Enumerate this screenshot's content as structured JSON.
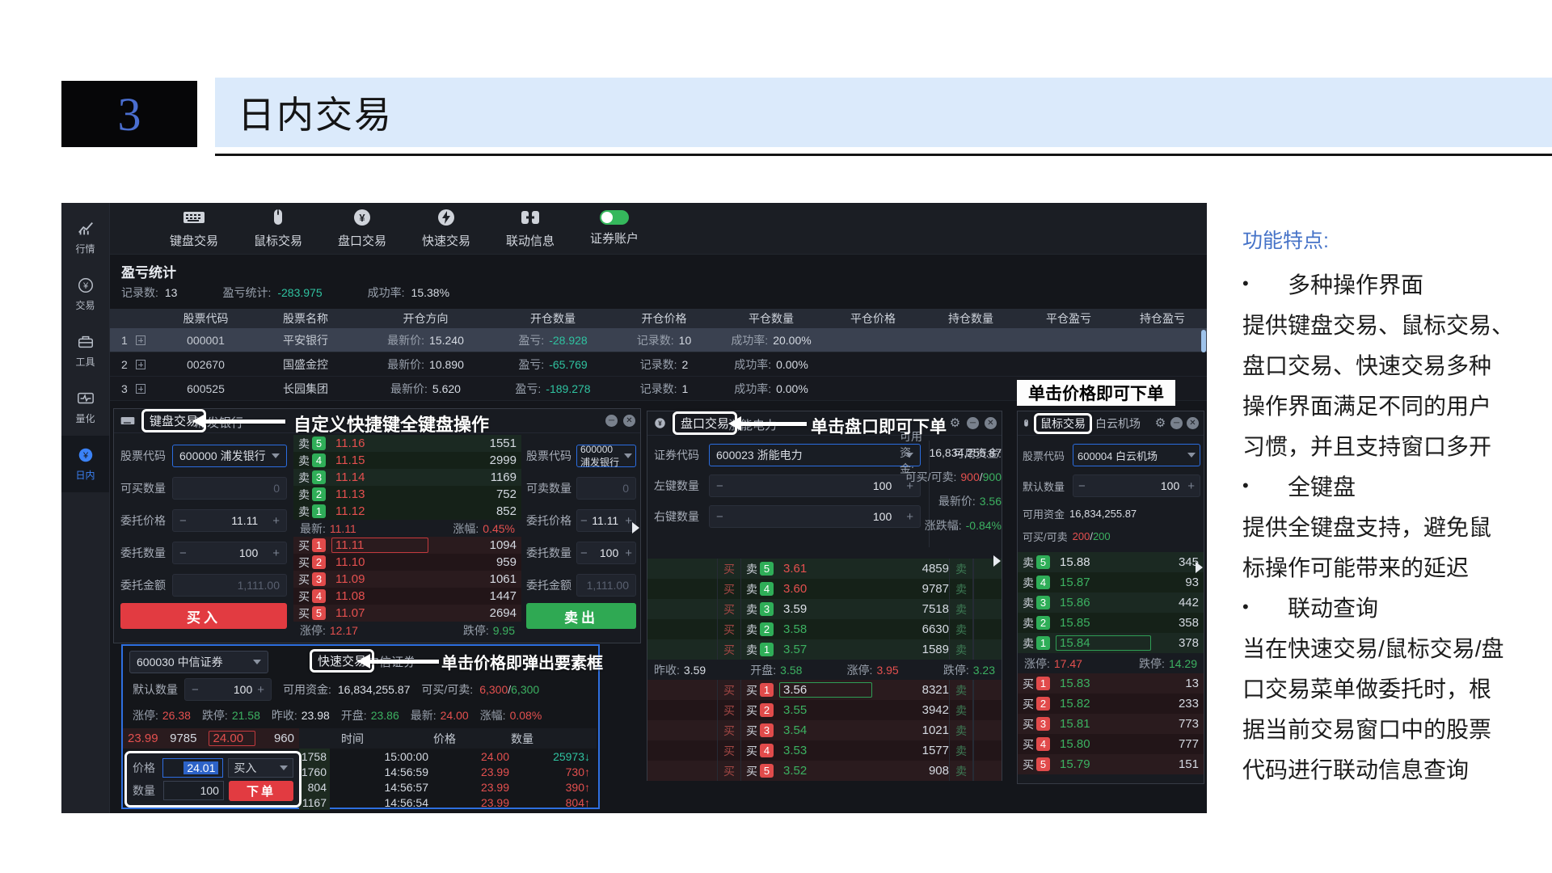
{
  "header": {
    "num": "3",
    "title": "日内交易"
  },
  "sidebar": [
    {
      "label": "行情"
    },
    {
      "label": "交易"
    },
    {
      "label": "工具"
    },
    {
      "label": "量化"
    },
    {
      "label": "日内"
    }
  ],
  "toolbar": [
    {
      "label": "键盘交易"
    },
    {
      "label": "鼠标交易"
    },
    {
      "label": "盘口交易"
    },
    {
      "label": "快速交易"
    },
    {
      "label": "联动信息"
    },
    {
      "label": "证券账户"
    }
  ],
  "pnl": {
    "title": "盈亏统计",
    "stats": [
      {
        "label": "记录数:",
        "value": "13"
      },
      {
        "label": "盈亏统计:",
        "value": "-283.975"
      },
      {
        "label": "成功率:",
        "value": "15.38%"
      }
    ],
    "columns": [
      "股票代码",
      "股票名称",
      "开仓方向",
      "开仓数量",
      "开仓价格",
      "平仓数量",
      "平仓价格",
      "持仓数量",
      "平仓盈亏",
      "持仓盈亏"
    ],
    "rows": [
      {
        "num": "1",
        "code": "000001",
        "name": "平安银行",
        "l1": "最新价:",
        "v1": "15.240",
        "l2": "盈亏:",
        "v2": "-28.928",
        "l3": "记录数:",
        "v3": "10",
        "l4": "成功率:",
        "v4": "20.00%",
        "rc": "sel"
      },
      {
        "num": "2",
        "code": "002670",
        "name": "国盛金控",
        "l1": "最新价:",
        "v1": "10.890",
        "l2": "盈亏:",
        "v2": "-65.769",
        "l3": "记录数:",
        "v3": "2",
        "l4": "成功率:",
        "v4": "0.00%",
        "rc": ""
      },
      {
        "num": "3",
        "code": "600525",
        "name": "长园集团",
        "l1": "最新价:",
        "v1": "5.620",
        "l2": "盈亏:",
        "v2": "-189.278",
        "l3": "记录数:",
        "v3": "1",
        "l4": "成功率:",
        "v4": "0.00%",
        "rc": ""
      }
    ]
  },
  "kb": {
    "title": "键盘交易",
    "stock": "浦发银行",
    "buy": {
      "code_label": "股票代码",
      "code": "600000  浦发银行",
      "qty_label": "可买数量",
      "qty": "0",
      "price_label": "委托价格",
      "price": "11.11",
      "num_label": "委托数量",
      "num": "100",
      "amt_label": "委托金额",
      "amt": "1,111.00",
      "btn": "买入"
    },
    "sell": {
      "code_label": "股票代码",
      "code": "600000  浦发银行",
      "qty_label": "可卖数量",
      "qty": "0",
      "price_label": "委托价格",
      "price": "11.11",
      "num_label": "委托数量",
      "num": "100",
      "amt_label": "委托金额",
      "amt": "1,111.00",
      "btn": "卖出"
    },
    "book": {
      "sell_rows": [
        {
          "b": "卖",
          "n": "5",
          "price": "11.16",
          "vol": "1551",
          "pc": "red",
          "rc": "s1"
        },
        {
          "b": "卖",
          "n": "4",
          "price": "11.15",
          "vol": "2999",
          "pc": "red",
          "rc": "s2"
        },
        {
          "b": "卖",
          "n": "3",
          "price": "11.14",
          "vol": "1169",
          "pc": "red",
          "rc": "s1"
        },
        {
          "b": "卖",
          "n": "2",
          "price": "11.13",
          "vol": "752",
          "pc": "red",
          "rc": "s2"
        },
        {
          "b": "卖",
          "n": "1",
          "price": "11.12",
          "vol": "852",
          "pc": "red",
          "rc": "s2"
        }
      ],
      "latest_label": "最新:",
      "latest": "11.11",
      "chg_label": "涨幅:",
      "chg": "0.45%",
      "buy_rows": [
        {
          "b": "买",
          "n": "1",
          "price": "11.11",
          "vol": "1094",
          "pc": "red",
          "rc": "b1",
          "box": "boxed-red"
        },
        {
          "b": "买",
          "n": "2",
          "price": "11.10",
          "vol": "959",
          "pc": "red",
          "rc": "b2"
        },
        {
          "b": "买",
          "n": "3",
          "price": "11.09",
          "vol": "1061",
          "pc": "red",
          "rc": "b1"
        },
        {
          "b": "买",
          "n": "4",
          "price": "11.08",
          "vol": "1447",
          "pc": "red",
          "rc": "b2"
        },
        {
          "b": "买",
          "n": "5",
          "price": "11.07",
          "vol": "2694",
          "pc": "red",
          "rc": "b1"
        }
      ],
      "up_label": "涨停:",
      "up": "12.17",
      "down_label": "跌停:",
      "down": "9.95"
    }
  },
  "speed": {
    "select": "600030  中信证券",
    "stock": "中信证券",
    "qty_label": "默认数量",
    "qty": "100",
    "fund_label": "可用资金:",
    "fund": "16,834,255.87",
    "avail_label": "可买/可卖:",
    "buy_avail": "6,300",
    "sell_avail": "6,300",
    "slash": "/",
    "stats": [
      {
        "label": "涨停:",
        "value": "26.38",
        "vc": "red"
      },
      {
        "label": "跌停:",
        "value": "21.58",
        "vc": "green"
      },
      {
        "label": "昨收:",
        "value": "23.98",
        "vc": "white"
      },
      {
        "label": "开盘:",
        "value": "23.86",
        "vc": "green"
      },
      {
        "label": "最新:",
        "value": "24.00",
        "vc": "red"
      },
      {
        "label": "涨幅:",
        "value": "0.08%",
        "vc": "red"
      }
    ],
    "ladder": {
      "p1": "23.99",
      "v1": "9785",
      "p2": "24.00",
      "v2": "960"
    },
    "ts_cols": [
      "时间",
      "价格",
      "数量"
    ],
    "ts_rows": [
      {
        "seq": "1758",
        "time": "15:00:00",
        "price": "24.00",
        "qty": "25973",
        "arrow": "↓",
        "qc": "teal"
      },
      {
        "seq": "1760",
        "time": "14:56:59",
        "price": "23.99",
        "qty": "730",
        "arrow": "↑",
        "qc": "red"
      },
      {
        "seq": "804",
        "time": "14:56:57",
        "price": "23.99",
        "qty": "390",
        "arrow": "↑",
        "qc": "red"
      },
      {
        "seq": "1167",
        "time": "14:56:54",
        "price": "23.99",
        "qty": "804",
        "arrow": "↑",
        "qc": "red"
      }
    ],
    "popup": {
      "price_label": "价格",
      "price": "24.01",
      "side": "买入",
      "qty_label": "数量",
      "qty": "100",
      "btn": "下单"
    }
  },
  "book": {
    "title": "盘口交易",
    "stock": "浙能电力",
    "code_label": "证券代码",
    "code": "600023    浙能电力",
    "left_label": "左键数量",
    "left_qty": "100",
    "right_label": "右键数量",
    "right_qty": "100",
    "fund_label": "可用资金:",
    "fund": "16,834,255.87",
    "avail_label": "可买/可卖:",
    "buy_avail": "900",
    "sell_avail": "900",
    "slash": "/",
    "latest_label": "最新价:",
    "latest": "3.56",
    "chg_label": "涨跌幅:",
    "chg": "-0.84%",
    "act_buy": "买",
    "act_sell": "卖",
    "sell_rows": [
      {
        "n": "5",
        "price": "3.61",
        "vol": "4859",
        "pc": "red",
        "rc": "s1"
      },
      {
        "n": "4",
        "price": "3.60",
        "vol": "9787",
        "pc": "red",
        "rc": "s2"
      },
      {
        "n": "3",
        "price": "3.59",
        "vol": "7518",
        "pc": "white",
        "rc": "s1"
      },
      {
        "n": "2",
        "price": "3.58",
        "vol": "6630",
        "pc": "green",
        "rc": "s2"
      },
      {
        "n": "1",
        "price": "3.57",
        "vol": "1589",
        "pc": "green",
        "rc": "s1"
      }
    ],
    "mid": {
      "prev_label": "昨收:",
      "prev": "3.59",
      "open_label": "开盘:",
      "open": "3.58",
      "up_label": "涨停:",
      "up": "3.95",
      "down_label": "跌停:",
      "down": "3.23"
    },
    "buy_rows": [
      {
        "n": "1",
        "price": "3.56",
        "vol": "8321",
        "pc": "white",
        "rc": "b1",
        "box": "boxed-green"
      },
      {
        "n": "2",
        "price": "3.55",
        "vol": "3942",
        "pc": "green",
        "rc": "b2"
      },
      {
        "n": "3",
        "price": "3.54",
        "vol": "1021",
        "pc": "green",
        "rc": "b1"
      },
      {
        "n": "4",
        "price": "3.53",
        "vol": "1577",
        "pc": "green",
        "rc": "b2"
      },
      {
        "n": "5",
        "price": "3.52",
        "vol": "908",
        "pc": "green",
        "rc": "b1"
      }
    ]
  },
  "mouse": {
    "title": "鼠标交易",
    "stock": "白云机场",
    "code_label": "股票代码",
    "code": "600004  白云机场",
    "qty_label": "默认数量",
    "qty": "100",
    "fund_label": "可用资金",
    "fund": "16,834,255.87",
    "avail_label": "可买/可卖",
    "buy_avail": "200",
    "sell_avail": "200",
    "slash": "/",
    "sell_rows": [
      {
        "b": "卖",
        "n": "5",
        "price": "15.88",
        "vol": "345",
        "pc": "white",
        "rc": "s1"
      },
      {
        "b": "卖",
        "n": "4",
        "price": "15.87",
        "vol": "93",
        "pc": "green",
        "rc": "s2"
      },
      {
        "b": "卖",
        "n": "3",
        "price": "15.86",
        "vol": "442",
        "pc": "green",
        "rc": "s1"
      },
      {
        "b": "卖",
        "n": "2",
        "price": "15.85",
        "vol": "358",
        "pc": "green",
        "rc": "s2"
      },
      {
        "b": "卖",
        "n": "1",
        "price": "15.84",
        "vol": "378",
        "pc": "green",
        "rc": "s1",
        "box": "boxed-green"
      }
    ],
    "up_label": "涨停:",
    "up": "17.47",
    "down_label": "跌停:",
    "down": "14.29",
    "buy_rows": [
      {
        "b": "买",
        "n": "1",
        "price": "15.83",
        "vol": "13",
        "pc": "green",
        "rc": "b1"
      },
      {
        "b": "买",
        "n": "2",
        "price": "15.82",
        "vol": "233",
        "pc": "green",
        "rc": "b2"
      },
      {
        "b": "买",
        "n": "3",
        "price": "15.81",
        "vol": "773",
        "pc": "green",
        "rc": "b1"
      },
      {
        "b": "买",
        "n": "4",
        "price": "15.80",
        "vol": "777",
        "pc": "green",
        "rc": "b2"
      },
      {
        "b": "买",
        "n": "5",
        "price": "15.79",
        "vol": "151",
        "pc": "green",
        "rc": "b1"
      }
    ]
  },
  "ann": {
    "kb": "自定义快捷键全键盘操作",
    "book": "单击盘口即可下单",
    "mouse": "单击价格即可下单",
    "speed": "单击价格即弹出要素框"
  },
  "features": {
    "title": "功能特点:",
    "items": [
      {
        "b": "•",
        "t": "多种操作界面",
        "cls": "bullet"
      },
      {
        "b": "",
        "t": "提供键盘交易、鼠标交易、",
        "cls": ""
      },
      {
        "b": "",
        "t": "盘口交易、快速交易多种",
        "cls": ""
      },
      {
        "b": "",
        "t": "操作界面满足不同的用户",
        "cls": ""
      },
      {
        "b": "",
        "t": "习惯，并且支持窗口多开",
        "cls": ""
      },
      {
        "b": "•",
        "t": "全键盘",
        "cls": "bullet"
      },
      {
        "b": "",
        "t": "提供全键盘支持，避免鼠",
        "cls": ""
      },
      {
        "b": "",
        "t": "标操作可能带来的延迟",
        "cls": ""
      },
      {
        "b": "•",
        "t": "联动查询",
        "cls": "bullet"
      },
      {
        "b": "",
        "t": "当在快速交易/鼠标交易/盘",
        "cls": ""
      },
      {
        "b": "",
        "t": "口交易菜单做委托时，根",
        "cls": ""
      },
      {
        "b": "",
        "t": "据当前交易窗口中的股票",
        "cls": ""
      },
      {
        "b": "",
        "t": "代码进行联动信息查询",
        "cls": ""
      }
    ]
  }
}
